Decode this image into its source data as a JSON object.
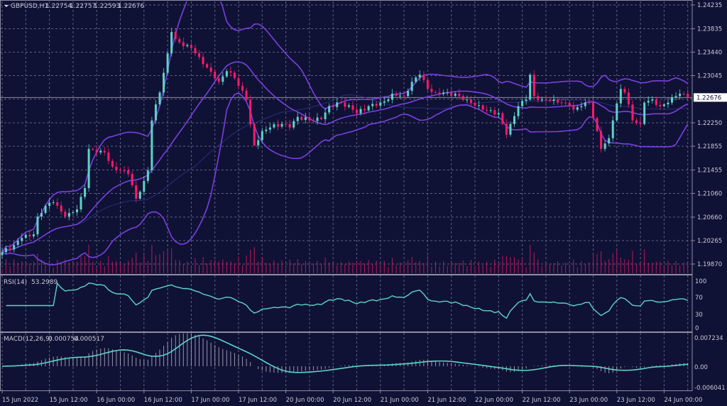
{
  "header": {
    "menu_icon": "triangle-down-icon",
    "symbol": "GBPUSD,H1",
    "open": "1.22754",
    "high": "1.22757",
    "low": "1.22593",
    "close": "1.22676"
  },
  "colors": {
    "background": "#0f1235",
    "grid": "#5d6080",
    "bull": "#5fd3c8",
    "bear": "#ff1a6a",
    "bands": "#7b3fe0",
    "signal": "#5fd3c8",
    "histogram": "#b8b8c8",
    "volume": "#c0145a",
    "axis_text": "#c9cad6"
  },
  "chart_data": [
    {
      "type": "candlestick",
      "title": "GBPUSD,H1",
      "timeframe": "H1",
      "overlays": [
        "Bollinger Bands",
        "Moving Average"
      ],
      "ylim": [
        1.1987,
        1.24235
      ],
      "y_ticks": [
        "1.24235",
        "1.23835",
        "1.23440",
        "1.23045",
        "1.22250",
        "1.21855",
        "1.21455",
        "1.21060",
        "1.20660",
        "1.20265",
        "1.19870"
      ],
      "current_price": "1.22676",
      "x_ticks": [
        "15 Jun 2022",
        "15 Jun 12:00",
        "16 Jun 00:00",
        "16 Jun 12:00",
        "17 Jun 00:00",
        "17 Jun 12:00",
        "20 Jun 00:00",
        "20 Jun 12:00",
        "21 Jun 00:00",
        "21 Jun 12:00",
        "22 Jun 00:00",
        "22 Jun 12:00",
        "23 Jun 00:00",
        "23 Jun 12:00",
        "24 Jun 00:00"
      ],
      "grid": true,
      "close_points": [
        [
          "15 Jun 00:00",
          1.2007
        ],
        [
          "15 Jun 03:00",
          1.2019
        ],
        [
          "15 Jun 05:00",
          1.2031
        ],
        [
          "15 Jun 08:00",
          1.2037
        ],
        [
          "15 Jun 09:00",
          1.2067
        ],
        [
          "15 Jun 11:00",
          1.2085
        ],
        [
          "15 Jun 13:00",
          1.2091
        ],
        [
          "15 Jun 16:00",
          1.2067
        ],
        [
          "15 Jun 17:00",
          1.2073
        ],
        [
          "15 Jun 19:00",
          1.2079
        ],
        [
          "15 Jun 21:00",
          1.2115
        ],
        [
          "15 Jun 22:00",
          1.2181
        ],
        [
          "16 Jun 00:00",
          1.2175
        ],
        [
          "16 Jun 02:00",
          1.2175
        ],
        [
          "16 Jun 04:00",
          1.2151
        ],
        [
          "16 Jun 06:00",
          1.2145
        ],
        [
          "16 Jun 08:00",
          1.2139
        ],
        [
          "16 Jun 10:00",
          1.2097
        ],
        [
          "16 Jun 12:00",
          1.2127
        ],
        [
          "16 Jun 13:00",
          1.2145
        ],
        [
          "16 Jun 14:00",
          1.2229
        ],
        [
          "16 Jun 16:00",
          1.2276
        ],
        [
          "16 Jun 18:00",
          1.2342
        ],
        [
          "16 Jun 19:00",
          1.2378
        ],
        [
          "16 Jun 20:00",
          1.2366
        ],
        [
          "16 Jun 22:00",
          1.2354
        ],
        [
          "17 Jun 00:00",
          1.2351
        ],
        [
          "17 Jun 02:00",
          1.2336
        ],
        [
          "17 Jun 04:00",
          1.2318
        ],
        [
          "17 Jun 06:00",
          1.23
        ],
        [
          "17 Jun 07:00",
          1.2294
        ],
        [
          "17 Jun 09:00",
          1.2312
        ],
        [
          "17 Jun 11:00",
          1.23
        ],
        [
          "17 Jun 14:00",
          1.2264
        ],
        [
          "17 Jun 15:00",
          1.2223
        ],
        [
          "17 Jun 16:00",
          1.2187
        ],
        [
          "17 Jun 18:00",
          1.2211
        ],
        [
          "17 Jun 20:00",
          1.2217
        ],
        [
          "17 Jun 23:00",
          1.2223
        ],
        [
          "20 Jun 01:00",
          1.2217
        ],
        [
          "20 Jun 03:00",
          1.2235
        ],
        [
          "20 Jun 06:00",
          1.2229
        ],
        [
          "20 Jun 09:00",
          1.2231
        ],
        [
          "20 Jun 11:00",
          1.2253
        ],
        [
          "20 Jun 14:00",
          1.2259
        ],
        [
          "20 Jun 17:00",
          1.2247
        ],
        [
          "20 Jun 18:00",
          1.2241
        ],
        [
          "20 Jun 21:00",
          1.2253
        ],
        [
          "21 Jun 00:00",
          1.2259
        ],
        [
          "21 Jun 02:00",
          1.2264
        ],
        [
          "21 Jun 03:00",
          1.2274
        ],
        [
          "21 Jun 06:00",
          1.227
        ],
        [
          "21 Jun 08:00",
          1.2294
        ],
        [
          "21 Jun 10:00",
          1.2306
        ],
        [
          "21 Jun 12:00",
          1.2282
        ],
        [
          "21 Jun 14:00",
          1.2276
        ],
        [
          "21 Jun 17:00",
          1.2276
        ],
        [
          "21 Jun 20:00",
          1.227
        ],
        [
          "21 Jun 22:00",
          1.2264
        ],
        [
          "22 Jun 02:00",
          1.2247
        ],
        [
          "22 Jun 06:00",
          1.2241
        ],
        [
          "22 Jun 07:00",
          1.2223
        ],
        [
          "22 Jun 08:00",
          1.2205
        ],
        [
          "22 Jun 09:00",
          1.2223
        ],
        [
          "22 Jun 11:00",
          1.2253
        ],
        [
          "22 Jun 13:00",
          1.2264
        ],
        [
          "22 Jun 14:00",
          1.2306
        ],
        [
          "22 Jun 15:00",
          1.227
        ],
        [
          "22 Jun 17:00",
          1.2264
        ],
        [
          "22 Jun 20:00",
          1.2264
        ],
        [
          "22 Jun 22:00",
          1.2259
        ],
        [
          "23 Jun 00:00",
          1.2253
        ],
        [
          "23 Jun 01:00",
          1.2247
        ],
        [
          "23 Jun 03:00",
          1.2253
        ],
        [
          "23 Jun 05:00",
          1.2259
        ],
        [
          "23 Jun 07:00",
          1.2211
        ],
        [
          "23 Jun 08:00",
          1.2181
        ],
        [
          "23 Jun 10:00",
          1.2199
        ],
        [
          "23 Jun 11:00",
          1.2229
        ],
        [
          "23 Jun 13:00",
          1.2282
        ],
        [
          "23 Jun 14:00",
          1.2276
        ],
        [
          "23 Jun 16:00",
          1.2229
        ],
        [
          "23 Jun 18:00",
          1.2223
        ],
        [
          "23 Jun 19:00",
          1.2259
        ],
        [
          "23 Jun 21:00",
          1.2264
        ],
        [
          "23 Jun 23:00",
          1.2253
        ],
        [
          "24 Jun 01:00",
          1.2259
        ],
        [
          "24 Jun 03:00",
          1.227
        ],
        [
          "24 Jun 04:00",
          1.2274
        ],
        [
          "24 Jun 06:00",
          1.22676
        ]
      ]
    },
    {
      "type": "line",
      "title": "RSI(14)",
      "value": "53.2989",
      "ylim": [
        0,
        100
      ],
      "y_ticks": [
        "100",
        "70",
        "30",
        "0"
      ],
      "levels": [
        70,
        30
      ]
    },
    {
      "type": "bar",
      "title": "MACD(12,26,9)",
      "main_value": "0.000754",
      "signal_value": "0.000517",
      "ylim": [
        -0.006041,
        0.007234
      ],
      "y_ticks": [
        "0.007234",
        "0.00",
        "-0.006041"
      ]
    }
  ]
}
